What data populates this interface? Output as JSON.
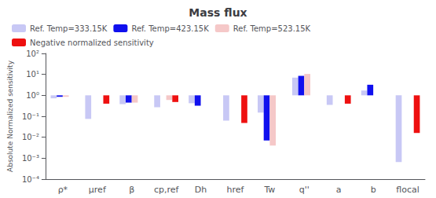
{
  "chart_data": {
    "type": "bar",
    "title": "Mass flux",
    "ylabel": "Absolute Normalized sensitivity",
    "categories": [
      "ρ*",
      "μref",
      "β",
      "cp,ref",
      "Dh",
      "href",
      "Tw",
      "q''",
      "a",
      "b",
      "flocal"
    ],
    "series": [
      {
        "name": "Ref. Temp=333.15K",
        "color": "#C8C8F5",
        "values": [
          0.72,
          0.075,
          0.38,
          0.27,
          0.42,
          0.062,
          0.15,
          7.0,
          0.35,
          1.7,
          0.00065
        ]
      },
      {
        "name": "Ref. Temp=423.15K",
        "color": "#1010EE",
        "values": [
          0.85,
          null,
          0.45,
          null,
          0.32,
          null,
          0.007,
          8.5,
          null,
          3.2,
          null
        ]
      },
      {
        "name": "Ref. Temp=523.15K",
        "color": "#F5C8C8",
        "values": [
          0.85,
          1.0,
          0.45,
          0.6,
          null,
          null,
          0.004,
          10.5,
          null,
          null,
          null
        ]
      },
      {
        "name": "Negative normalized sensitivity",
        "color": "#EE1010",
        "values": [
          null,
          0.4,
          null,
          0.48,
          null,
          0.048,
          null,
          null,
          0.4,
          null,
          0.016
        ]
      }
    ],
    "ylim": [
      0.0001,
      100
    ],
    "yticks": [
      {
        "value": 0.0001,
        "label": "10⁻⁴"
      },
      {
        "value": 0.001,
        "label": "10⁻³"
      },
      {
        "value": 0.01,
        "label": "10⁻²"
      },
      {
        "value": 0.1,
        "label": "10⁻¹"
      },
      {
        "value": 1,
        "label": "10⁰"
      },
      {
        "value": 10,
        "label": "10¹"
      },
      {
        "value": 100,
        "label": "10²"
      }
    ],
    "log": "y",
    "grid": false,
    "legend": "upper left"
  }
}
